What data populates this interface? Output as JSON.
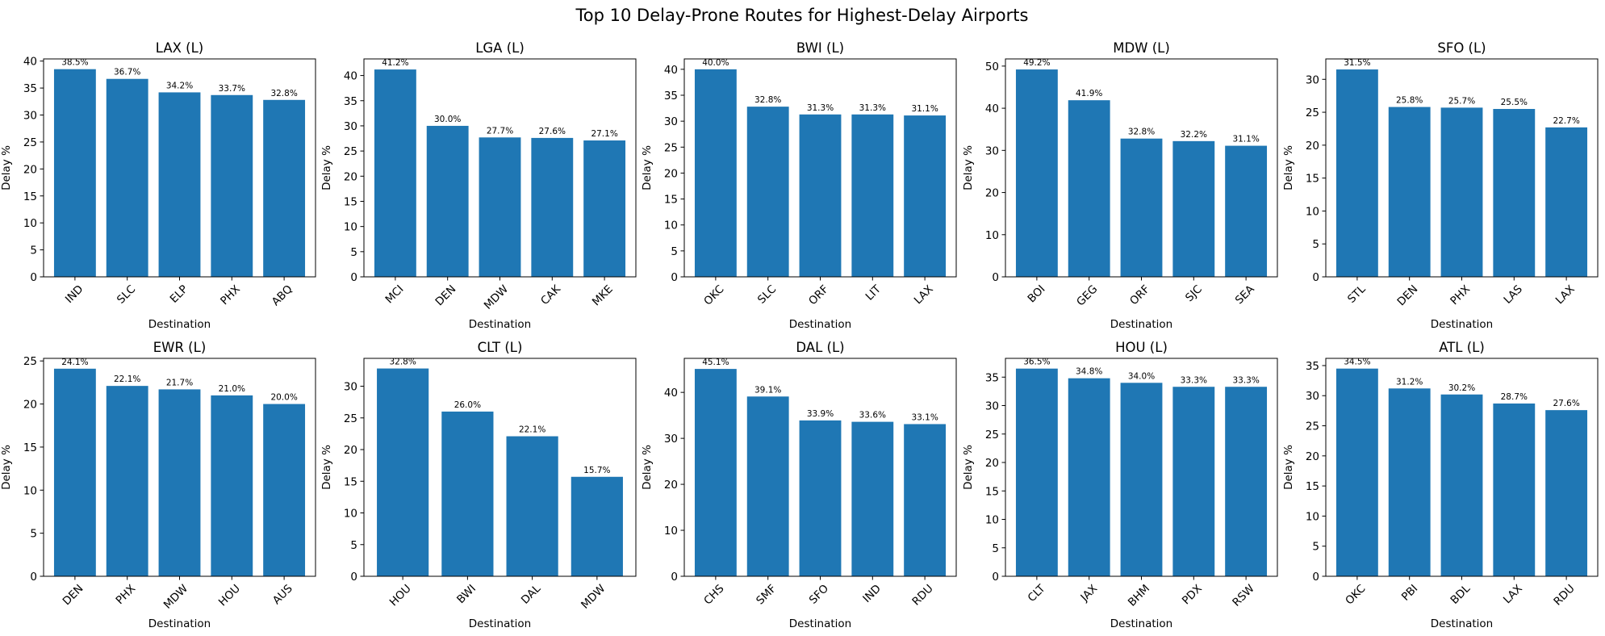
{
  "figure": {
    "title": "Top 10 Delay-Prone Routes for Highest-Delay Airports"
  },
  "colors": {
    "bar": "#1f77b4",
    "axis": "#000000",
    "background": "#ffffff"
  },
  "chart_data": [
    {
      "type": "bar",
      "title": "LAX (L)",
      "xlabel": "Destination",
      "ylabel": "Delay %",
      "ylim": [
        0,
        40.4
      ],
      "yticks": [
        0,
        5,
        10,
        15,
        20,
        25,
        30,
        35,
        40
      ],
      "categories": [
        "IND",
        "SLC",
        "ELP",
        "PHX",
        "ABQ"
      ],
      "values": [
        38.5,
        36.7,
        34.2,
        33.7,
        32.8
      ],
      "value_labels": [
        "38.5%",
        "36.7%",
        "34.2%",
        "33.7%",
        "32.8%"
      ],
      "grid": false,
      "legend": "none"
    },
    {
      "type": "bar",
      "title": "LGA (L)",
      "xlabel": "Destination",
      "ylabel": "Delay %",
      "ylim": [
        0,
        43.3
      ],
      "yticks": [
        0,
        5,
        10,
        15,
        20,
        25,
        30,
        35,
        40
      ],
      "categories": [
        "MCI",
        "DEN",
        "MDW",
        "CAK",
        "MKE"
      ],
      "values": [
        41.2,
        30.0,
        27.7,
        27.6,
        27.1
      ],
      "value_labels": [
        "41.2%",
        "30.0%",
        "27.7%",
        "27.6%",
        "27.1%"
      ],
      "grid": false,
      "legend": "none"
    },
    {
      "type": "bar",
      "title": "BWI (L)",
      "xlabel": "Destination",
      "ylabel": "Delay %",
      "ylim": [
        0,
        42.0
      ],
      "yticks": [
        0,
        5,
        10,
        15,
        20,
        25,
        30,
        35,
        40
      ],
      "categories": [
        "OKC",
        "SLC",
        "ORF",
        "LIT",
        "LAX"
      ],
      "values": [
        40.0,
        32.8,
        31.3,
        31.3,
        31.1
      ],
      "value_labels": [
        "40.0%",
        "32.8%",
        "31.3%",
        "31.3%",
        "31.1%"
      ],
      "grid": false,
      "legend": "none"
    },
    {
      "type": "bar",
      "title": "MDW (L)",
      "xlabel": "Destination",
      "ylabel": "Delay %",
      "ylim": [
        0,
        51.7
      ],
      "yticks": [
        0,
        10,
        20,
        30,
        40,
        50
      ],
      "categories": [
        "BOI",
        "GEG",
        "ORF",
        "SJC",
        "SEA"
      ],
      "values": [
        49.2,
        41.9,
        32.8,
        32.2,
        31.1
      ],
      "value_labels": [
        "49.2%",
        "41.9%",
        "32.8%",
        "32.2%",
        "31.1%"
      ],
      "grid": false,
      "legend": "none"
    },
    {
      "type": "bar",
      "title": "SFO (L)",
      "xlabel": "Destination",
      "ylabel": "Delay %",
      "ylim": [
        0,
        33.1
      ],
      "yticks": [
        0,
        5,
        10,
        15,
        20,
        25,
        30
      ],
      "categories": [
        "STL",
        "DEN",
        "PHX",
        "LAS",
        "LAX"
      ],
      "values": [
        31.5,
        25.8,
        25.7,
        25.5,
        22.7
      ],
      "value_labels": [
        "31.5%",
        "25.8%",
        "25.7%",
        "25.5%",
        "22.7%"
      ],
      "grid": false,
      "legend": "none"
    },
    {
      "type": "bar",
      "title": "EWR (L)",
      "xlabel": "Destination",
      "ylabel": "Delay %",
      "ylim": [
        0,
        25.3
      ],
      "yticks": [
        0,
        5,
        10,
        15,
        20,
        25
      ],
      "categories": [
        "DEN",
        "PHX",
        "MDW",
        "HOU",
        "AUS"
      ],
      "values": [
        24.1,
        22.1,
        21.7,
        21.0,
        20.0
      ],
      "value_labels": [
        "24.1%",
        "22.1%",
        "21.7%",
        "21.0%",
        "20.0%"
      ],
      "grid": false,
      "legend": "none"
    },
    {
      "type": "bar",
      "title": "CLT (L)",
      "xlabel": "Destination",
      "ylabel": "Delay %",
      "ylim": [
        0,
        34.4
      ],
      "yticks": [
        0,
        5,
        10,
        15,
        20,
        25,
        30
      ],
      "categories": [
        "HOU",
        "BWI",
        "DAL",
        "MDW"
      ],
      "values": [
        32.8,
        26.0,
        22.1,
        15.7
      ],
      "value_labels": [
        "32.8%",
        "26.0%",
        "22.1%",
        "15.7%"
      ],
      "grid": false,
      "legend": "none"
    },
    {
      "type": "bar",
      "title": "DAL (L)",
      "xlabel": "Destination",
      "ylabel": "Delay %",
      "ylim": [
        0,
        47.4
      ],
      "yticks": [
        0,
        10,
        20,
        30,
        40
      ],
      "categories": [
        "CHS",
        "SMF",
        "SFO",
        "IND",
        "RDU"
      ],
      "values": [
        45.1,
        39.1,
        33.9,
        33.6,
        33.1
      ],
      "value_labels": [
        "45.1%",
        "39.1%",
        "33.9%",
        "33.6%",
        "33.1%"
      ],
      "grid": false,
      "legend": "none"
    },
    {
      "type": "bar",
      "title": "HOU (L)",
      "xlabel": "Destination",
      "ylabel": "Delay %",
      "ylim": [
        0,
        38.3
      ],
      "yticks": [
        0,
        5,
        10,
        15,
        20,
        25,
        30,
        35
      ],
      "categories": [
        "CLT",
        "JAX",
        "BHM",
        "PDX",
        "RSW"
      ],
      "values": [
        36.5,
        34.8,
        34.0,
        33.3,
        33.3
      ],
      "value_labels": [
        "36.5%",
        "34.8%",
        "34.0%",
        "33.3%",
        "33.3%"
      ],
      "grid": false,
      "legend": "none"
    },
    {
      "type": "bar",
      "title": "ATL (L)",
      "xlabel": "Destination",
      "ylabel": "Delay %",
      "ylim": [
        0,
        36.2
      ],
      "yticks": [
        0,
        5,
        10,
        15,
        20,
        25,
        30,
        35
      ],
      "categories": [
        "OKC",
        "PBI",
        "BDL",
        "LAX",
        "RDU"
      ],
      "values": [
        34.5,
        31.2,
        30.2,
        28.7,
        27.6
      ],
      "value_labels": [
        "34.5%",
        "31.2%",
        "30.2%",
        "28.7%",
        "27.6%"
      ],
      "grid": false,
      "legend": "none"
    }
  ]
}
